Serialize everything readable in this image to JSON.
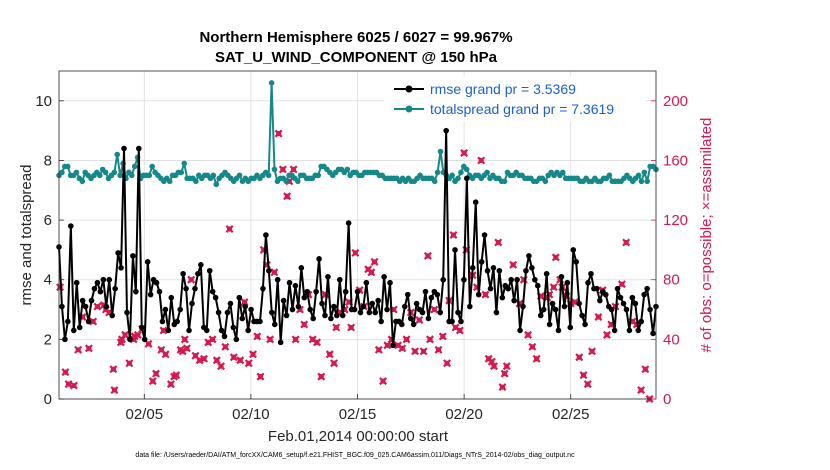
{
  "chart_data": {
    "type": "line",
    "title": "Northern Hemisphere 6025 / 6027 = 99.967%",
    "subtitle": "SAT_U_WIND_COMPONENT @ 150 hPa",
    "xlabel": "Feb.01,2014 00:00:00 start",
    "ylabel": "rmse and totalspread",
    "ylabel_right": "# of obs: o=possible; ×=assimilated",
    "footer": "data file: /Users/raeder/DAI/ATM_forcXX/CAM6_setup/f.e21.FHIST_BGC.f09_025.CAM6assim.011/Diags_NTrS_2014-02/obs_diag_output.nc",
    "x_tick_labels": [
      "02/05",
      "02/10",
      "02/15",
      "02/20",
      "02/25"
    ],
    "x_tick_days": [
      5,
      10,
      15,
      20,
      25
    ],
    "xlim_days": [
      1,
      29
    ],
    "ylim": [
      0,
      11
    ],
    "y_ticks": [
      0,
      2,
      4,
      6,
      8,
      10
    ],
    "y_tick_labels": [
      "0",
      "2",
      "4",
      "6",
      "8",
      "10"
    ],
    "ylim_right": [
      0,
      220
    ],
    "y_ticks_right": [
      0,
      40,
      80,
      120,
      160,
      200
    ],
    "y_tick_labels_right": [
      "0",
      "40",
      "80",
      "120",
      "160",
      "200"
    ],
    "legend_position": "top-right",
    "grid": true,
    "colors": {
      "rmse": "#000000",
      "spread": "#16888a",
      "obs": "#d6194f",
      "legend_text": "#1a5fd6",
      "right_axis": "#d6194f"
    },
    "series": [
      {
        "name": "rmse grand pr = 3.5369",
        "values": [
          5.1,
          3.1,
          2.0,
          2.6,
          5.8,
          2.3,
          3.9,
          2.4,
          3.3,
          3.1,
          2.6,
          3.3,
          3.7,
          3.9,
          3.6,
          4.0,
          3.1,
          4.0,
          2.8,
          3.7,
          4.9,
          4.4,
          8.4,
          2.9,
          2.0,
          4.8,
          3.6,
          8.4,
          2.4,
          2.0,
          4.6,
          3.5,
          4.0,
          3.9,
          3.6,
          2.6,
          3.0,
          2.3,
          3.4,
          2.5,
          2.6,
          3.0,
          4.2,
          3.7,
          2.3,
          3.2,
          3.7,
          4.2,
          4.5,
          2.4,
          2.3,
          4.3,
          3.6,
          3.4,
          2.9,
          2.3,
          2.1,
          2.9,
          3.2,
          2.4,
          2.0,
          3.4,
          2.7,
          3.1,
          2.3,
          3.0,
          2.6,
          2.6,
          2.6,
          3.7,
          5.5,
          4.3,
          2.9,
          2.5,
          4.0,
          1.9,
          3.3,
          2.8,
          3.9,
          3.0,
          3.8,
          3.1,
          4.4,
          3.4,
          3.6,
          3.0,
          2.7,
          3.6,
          4.7,
          3.2,
          2.8,
          4.1,
          2.7,
          3.1,
          2.8,
          4.0,
          2.8,
          3.6,
          5.9,
          3.0,
          3.0,
          3.6,
          2.9,
          3.1,
          3.9,
          2.9,
          3.2,
          2.9,
          3.3,
          2.6,
          4.1,
          3.0,
          3.9,
          1.8,
          2.6,
          2.6,
          2.5,
          3.1,
          3.5,
          2.7,
          2.5,
          3.2,
          3.0,
          2.9,
          3.6,
          2.7,
          3.4,
          3.6,
          3.5,
          2.9,
          4.0,
          9.0,
          2.6,
          2.6,
          5.0,
          2.9,
          2.6,
          4.0,
          7.4,
          3.1,
          4.4,
          6.6,
          3.5,
          4.6,
          5.5,
          4.3,
          3.7,
          4.4,
          2.9,
          4.3,
          3.4,
          3.8,
          3.7,
          4.0,
          3.3,
          4.0,
          2.3,
          3.1,
          4.3,
          4.8,
          4.4,
          4.0,
          3.8,
          2.8,
          3.0,
          4.2,
          2.5,
          3.2,
          3.0,
          2.3,
          4.1,
          3.1,
          3.9,
          2.4,
          5.0,
          4.6,
          3.2,
          2.8,
          2.5,
          3.9,
          4.2,
          3.7,
          3.7,
          3.3,
          3.6,
          3.5,
          3.1,
          3.0,
          2.3,
          3.7,
          3.4,
          3.2,
          3.0,
          2.3,
          3.4,
          3.2,
          2.3,
          2.6,
          3.5,
          3.7,
          3.0,
          2.2,
          3.1
        ]
      },
      {
        "name": "totalspread grand pr = 7.3619",
        "values": [
          7.5,
          7.6,
          7.8,
          7.8,
          7.5,
          7.5,
          7.6,
          7.4,
          7.3,
          7.6,
          7.5,
          7.4,
          7.5,
          7.6,
          7.5,
          7.7,
          7.6,
          7.4,
          7.5,
          7.6,
          8.2,
          7.5,
          7.9,
          7.4,
          7.6,
          7.5,
          7.8,
          8.1,
          7.4,
          7.5,
          7.5,
          7.5,
          7.8,
          7.6,
          7.5,
          7.4,
          7.3,
          7.4,
          7.3,
          7.5,
          7.5,
          7.6,
          7.6,
          7.9,
          7.4,
          7.4,
          7.4,
          7.3,
          7.5,
          7.4,
          7.5,
          7.5,
          7.4,
          7.5,
          7.2,
          7.4,
          7.5,
          7.6,
          7.5,
          7.4,
          7.3,
          7.4,
          7.5,
          7.3,
          7.4,
          7.3,
          7.4,
          7.4,
          7.5,
          7.4,
          7.5,
          7.6,
          7.5,
          10.6,
          7.7,
          7.3,
          7.4,
          7.4,
          7.3,
          7.5,
          7.5,
          7.4,
          7.3,
          7.5,
          7.5,
          7.4,
          7.4,
          7.4,
          7.5,
          7.5,
          7.8,
          7.8,
          7.7,
          7.6,
          7.5,
          7.6,
          7.7,
          7.7,
          7.6,
          7.7,
          7.5,
          7.6,
          7.6,
          7.5,
          7.5,
          7.6,
          7.6,
          7.6,
          7.6,
          7.6,
          7.5,
          7.5,
          7.4,
          7.4,
          7.4,
          7.4,
          7.4,
          7.3,
          7.4,
          7.3,
          7.4,
          7.3,
          7.3,
          7.4,
          7.5,
          7.4,
          7.4,
          7.4,
          7.4,
          7.3,
          7.6,
          8.3,
          7.6,
          7.5,
          7.4,
          7.5,
          7.3,
          7.4,
          7.6,
          7.8,
          7.7,
          7.5,
          7.4,
          7.5,
          7.5,
          7.4,
          7.5,
          7.6,
          7.4,
          7.5,
          7.4,
          7.4,
          7.3,
          7.3,
          7.6,
          7.5,
          7.5,
          7.6,
          7.5,
          7.5,
          7.4,
          7.4,
          7.4,
          7.3,
          7.3,
          7.4,
          7.4,
          7.3,
          7.5,
          7.6,
          7.5,
          7.6,
          7.5,
          7.6,
          7.4,
          7.4,
          7.4,
          7.4,
          7.4,
          7.3,
          7.3,
          7.4,
          7.3,
          7.3,
          7.4,
          7.3,
          7.3,
          7.4,
          7.4,
          7.5,
          7.3,
          7.3,
          7.3,
          7.3,
          7.4,
          7.5,
          7.4,
          7.3,
          7.4,
          7.5,
          7.3,
          7.6,
          7.3,
          7.8,
          7.8,
          7.7
        ]
      }
    ],
    "obs_assimilated": {
      "name": "# of obs assimilated",
      "points": [
        [
          1.05,
          75
        ],
        [
          1.3,
          18
        ],
        [
          1.45,
          10
        ],
        [
          1.7,
          9
        ],
        [
          1.9,
          33
        ],
        [
          2.1,
          55
        ],
        [
          2.4,
          34
        ],
        [
          2.6,
          52
        ],
        [
          2.8,
          62
        ],
        [
          3.1,
          63
        ],
        [
          3.2,
          60
        ],
        [
          3.35,
          58
        ],
        [
          3.55,
          20
        ],
        [
          3.6,
          6
        ],
        [
          3.9,
          38
        ],
        [
          3.95,
          40
        ],
        [
          4.1,
          43
        ],
        [
          4.3,
          24
        ],
        [
          4.5,
          40
        ],
        [
          4.55,
          42
        ],
        [
          4.7,
          43
        ],
        [
          4.9,
          47
        ],
        [
          5.2,
          37
        ],
        [
          5.4,
          12
        ],
        [
          5.55,
          17
        ],
        [
          5.8,
          33
        ],
        [
          5.9,
          46
        ],
        [
          6.0,
          30
        ],
        [
          6.25,
          10
        ],
        [
          6.4,
          15
        ],
        [
          6.5,
          16
        ],
        [
          6.7,
          33
        ],
        [
          6.8,
          32
        ],
        [
          6.9,
          40
        ],
        [
          7.0,
          34
        ],
        [
          7.2,
          80
        ],
        [
          7.4,
          29
        ],
        [
          7.6,
          26
        ],
        [
          7.8,
          27
        ],
        [
          8.0,
          38
        ],
        [
          8.2,
          40
        ],
        [
          8.4,
          26
        ],
        [
          8.6,
          22
        ],
        [
          8.8,
          35
        ],
        [
          9.0,
          114
        ],
        [
          9.2,
          28
        ],
        [
          9.5,
          26
        ],
        [
          9.7,
          65
        ],
        [
          9.9,
          24
        ],
        [
          10.1,
          30
        ],
        [
          10.3,
          42
        ],
        [
          10.45,
          15
        ],
        [
          10.6,
          100
        ],
        [
          10.75,
          90
        ],
        [
          10.9,
          40
        ],
        [
          11.1,
          85
        ],
        [
          11.3,
          178
        ],
        [
          11.5,
          154
        ],
        [
          11.7,
          136
        ],
        [
          11.8,
          146
        ],
        [
          12.0,
          154
        ],
        [
          12.1,
          40
        ],
        [
          12.3,
          60
        ],
        [
          12.5,
          50
        ],
        [
          12.7,
          70
        ],
        [
          12.9,
          40
        ],
        [
          13.1,
          38
        ],
        [
          13.3,
          15
        ],
        [
          13.5,
          70
        ],
        [
          13.7,
          30
        ],
        [
          13.9,
          24
        ],
        [
          14.0,
          48
        ],
        [
          14.2,
          58
        ],
        [
          14.4,
          60
        ],
        [
          14.6,
          65
        ],
        [
          14.7,
          48
        ],
        [
          14.9,
          98
        ],
        [
          15.1,
          73
        ],
        [
          15.3,
          62
        ],
        [
          15.5,
          87
        ],
        [
          15.65,
          85
        ],
        [
          15.8,
          92
        ],
        [
          16.0,
          33
        ],
        [
          16.2,
          12
        ],
        [
          16.4,
          36
        ],
        [
          16.6,
          40
        ],
        [
          16.7,
          60
        ],
        [
          16.9,
          36
        ],
        [
          17.1,
          34
        ],
        [
          17.3,
          40
        ],
        [
          17.5,
          58
        ],
        [
          17.7,
          32
        ],
        [
          17.9,
          53
        ],
        [
          18.1,
          32
        ],
        [
          18.3,
          96
        ],
        [
          18.4,
          40
        ],
        [
          18.6,
          60
        ],
        [
          18.8,
          33
        ],
        [
          19.0,
          42
        ],
        [
          19.2,
          24
        ],
        [
          19.3,
          66
        ],
        [
          19.5,
          110
        ],
        [
          19.6,
          48
        ],
        [
          19.8,
          46
        ],
        [
          20.0,
          165
        ],
        [
          20.1,
          100
        ],
        [
          20.4,
          83
        ],
        [
          20.6,
          75
        ],
        [
          20.8,
          160
        ],
        [
          21.0,
          70
        ],
        [
          21.15,
          27
        ],
        [
          21.3,
          25
        ],
        [
          21.4,
          22
        ],
        [
          21.6,
          105
        ],
        [
          21.8,
          8
        ],
        [
          21.9,
          17
        ],
        [
          22.0,
          22
        ],
        [
          22.3,
          90
        ],
        [
          22.6,
          64
        ],
        [
          22.8,
          80
        ],
        [
          23.0,
          43
        ],
        [
          23.2,
          35
        ],
        [
          23.4,
          27
        ],
        [
          23.6,
          69
        ],
        [
          23.9,
          68
        ],
        [
          24.0,
          70
        ],
        [
          24.2,
          75
        ],
        [
          24.3,
          95
        ],
        [
          24.5,
          80
        ],
        [
          24.6,
          75
        ],
        [
          24.8,
          69
        ],
        [
          25.0,
          64
        ],
        [
          25.2,
          65
        ],
        [
          25.4,
          28
        ],
        [
          25.6,
          16
        ],
        [
          25.8,
          10
        ],
        [
          26.0,
          32
        ],
        [
          26.3,
          55
        ],
        [
          26.5,
          73
        ],
        [
          26.7,
          43
        ],
        [
          26.9,
          50
        ],
        [
          27.1,
          62
        ],
        [
          27.4,
          77
        ],
        [
          27.6,
          105
        ],
        [
          27.9,
          52
        ],
        [
          28.1,
          50
        ],
        [
          28.3,
          6
        ],
        [
          28.5,
          20
        ],
        [
          28.7,
          0
        ]
      ]
    }
  }
}
